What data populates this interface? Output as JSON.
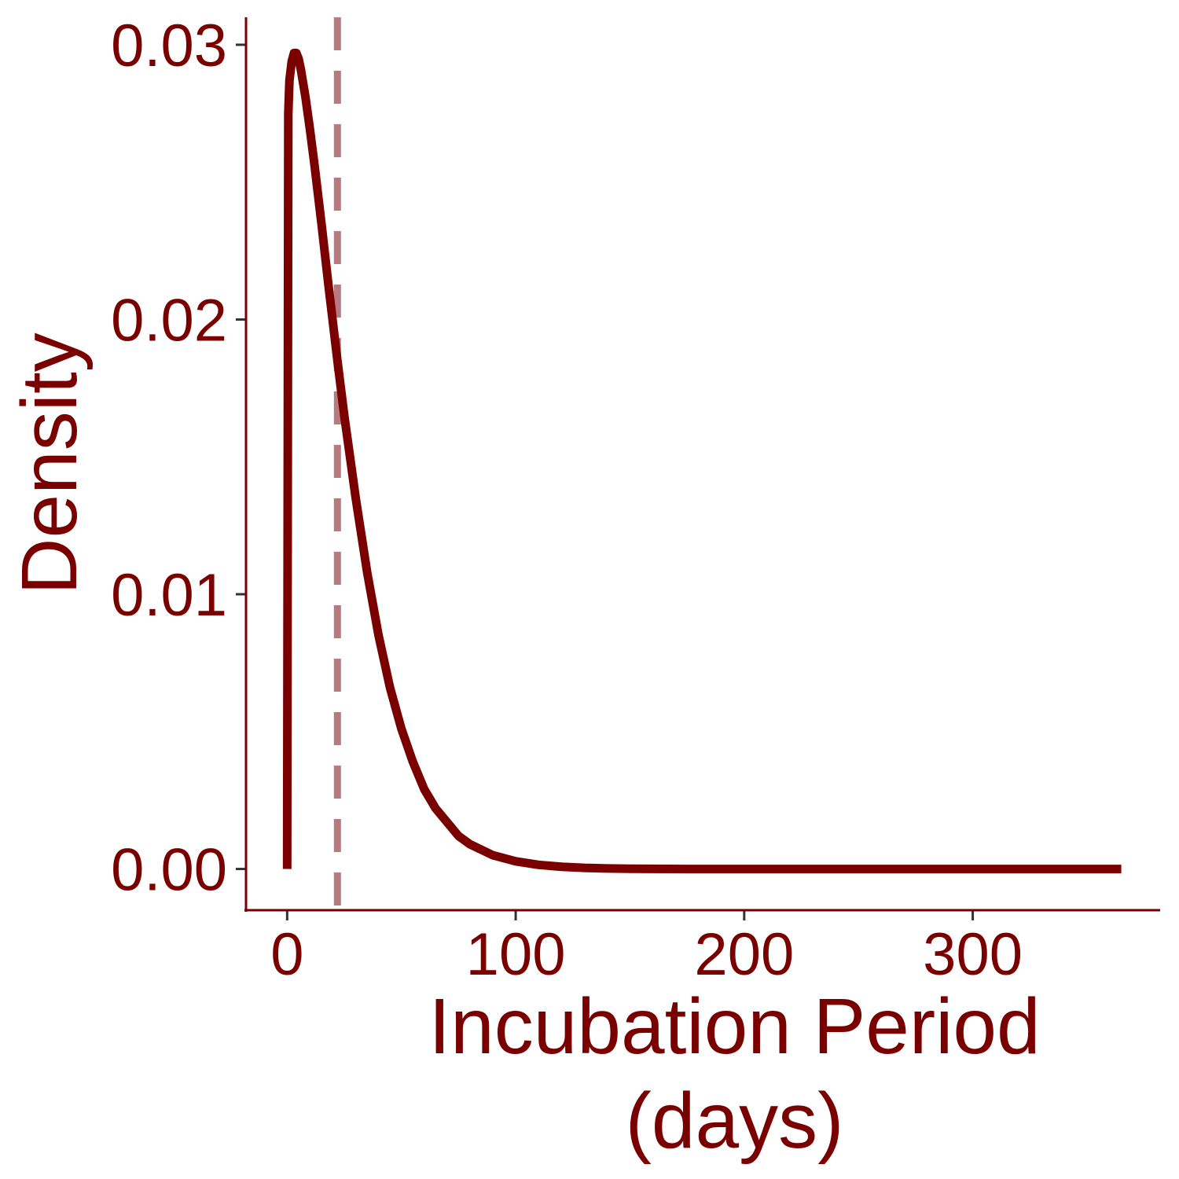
{
  "chart_data": {
    "type": "line",
    "title": "",
    "xlabel": "Incubation Period (days)",
    "xlabel_lines": [
      "Incubation Period",
      "(days)"
    ],
    "ylabel": "Density",
    "xlim": [
      -18,
      382
    ],
    "ylim": [
      -0.0015,
      0.031
    ],
    "x_ticks": [
      0,
      100,
      200,
      300
    ],
    "x_tick_labels": [
      "0",
      "100",
      "200",
      "300"
    ],
    "y_ticks": [
      0,
      0.01,
      0.02,
      0.03
    ],
    "y_tick_labels": [
      "0.00",
      "0.01",
      "0.02",
      "0.03"
    ],
    "grid": false,
    "legend": "none",
    "series": [
      {
        "x": [
          0,
          0.5,
          1,
          2,
          3,
          4,
          5,
          6,
          8,
          10,
          12,
          15,
          18,
          20,
          22,
          25,
          30,
          35,
          40,
          45,
          50,
          55,
          60,
          65,
          70,
          75,
          80,
          90,
          100,
          110,
          120,
          130,
          140,
          150,
          175,
          200,
          250,
          300,
          365
        ],
        "y": [
          0.0,
          0.0275,
          0.0287,
          0.0294,
          0.0297,
          0.0297,
          0.0295,
          0.0291,
          0.0281,
          0.0269,
          0.0256,
          0.0235,
          0.0213,
          0.0199,
          0.0185,
          0.0165,
          0.0135,
          0.0108,
          0.0085,
          0.0066,
          0.0051,
          0.0039,
          0.0029,
          0.0022,
          0.0017,
          0.0012,
          0.0009,
          0.0005,
          0.00028,
          0.00015,
          8e-05,
          4e-05,
          2e-05,
          1e-05,
          0.0,
          0.0,
          0.0,
          0.0,
          0.0
        ]
      }
    ],
    "reference_line": {
      "orientation": "vertical",
      "x": 22,
      "style": "dashed"
    },
    "colors": {
      "line": "#7a0000",
      "reference_line": "#b87a7e",
      "text": "#7a0000",
      "x_axis": "#7a0000",
      "y_axis": "#7a0000",
      "ticks": "#333333"
    }
  }
}
